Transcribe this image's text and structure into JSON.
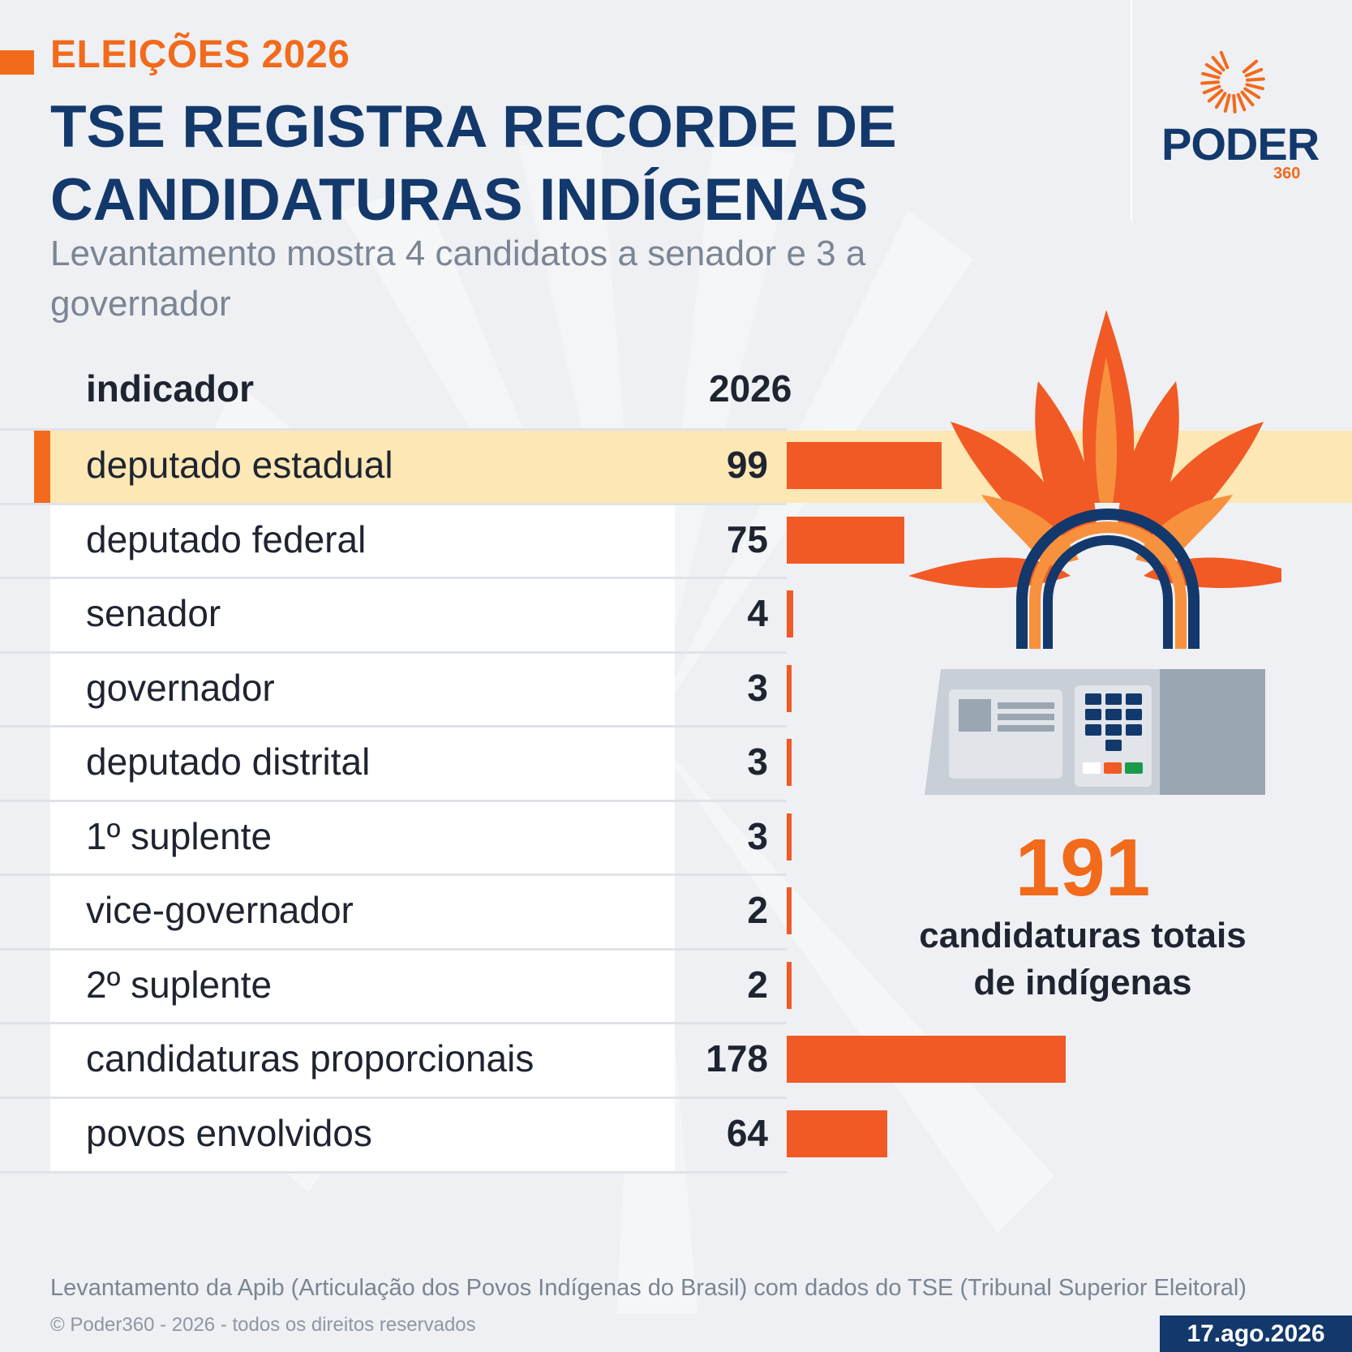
{
  "header": {
    "kicker": "ELEIÇÕES 2026",
    "title": "TSE REGISTRA RECORDE DE CANDIDATURAS INDÍGENAS",
    "subtitle": "Levantamento mostra 4 candidatos a senador e 3 a governador"
  },
  "logo": {
    "name": "PODER",
    "suffix": "360"
  },
  "colors": {
    "accent": "#f26a1b",
    "bar": "#f15a24",
    "navy": "#13386b",
    "highlight": "#fde7b4"
  },
  "chart_data": {
    "type": "bar",
    "orientation": "horizontal",
    "header_category": "indicador",
    "header_value": "2026",
    "categories": [
      "deputado estadual",
      "deputado federal",
      "senador",
      "governador",
      "deputado distrital",
      "1º suplente",
      "vice-governador",
      "2º suplente",
      "candidaturas proporcionais",
      "povos envolvidos"
    ],
    "values": [
      99,
      75,
      4,
      3,
      3,
      3,
      2,
      2,
      178,
      64
    ],
    "value_labels": [
      "99",
      "75",
      "4",
      "3",
      "3",
      "3",
      "2",
      "2",
      "178",
      "64"
    ],
    "highlighted": "deputado estadual"
  },
  "total": {
    "value": "191",
    "label": "candidaturas totais de indígenas"
  },
  "footer": {
    "source": "Levantamento da Apib (Articulação dos Povos Indígenas do Brasil) com dados do TSE (Tribunal Superior Eleitoral)",
    "copyright": "© Poder360 - 2026 - todos os direitos reservados",
    "date": "17.ago.2026"
  },
  "icons": [
    "sun-logo-icon",
    "headdress-icon",
    "ballot-box-icon"
  ]
}
